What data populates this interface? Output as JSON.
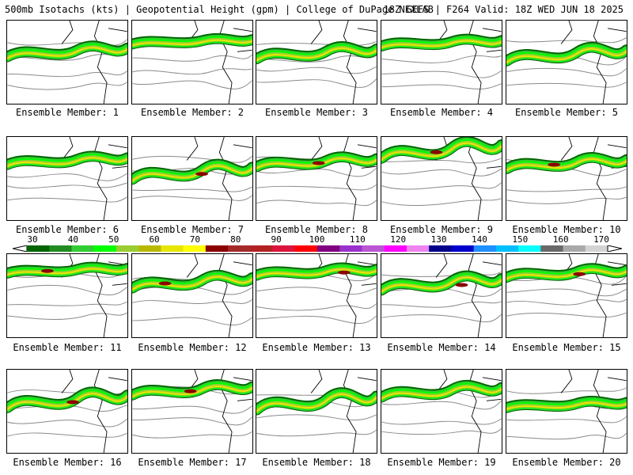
{
  "header": {
    "left": "500mb Isotachs (kts) | Geopotential Height (gpm) | College of DuPage NEXLAB",
    "right": "18Z GEFS | F264 Valid: 18Z WED JUN 18 2025"
  },
  "members": [
    "Ensemble Member: 1",
    "Ensemble Member: 2",
    "Ensemble Member: 3",
    "Ensemble Member: 4",
    "Ensemble Member: 5",
    "Ensemble Member: 6",
    "Ensemble Member: 7",
    "Ensemble Member: 8",
    "Ensemble Member: 9",
    "Ensemble Member: 10",
    "Ensemble Member: 11",
    "Ensemble Member: 12",
    "Ensemble Member: 13",
    "Ensemble Member: 14",
    "Ensemble Member: 15",
    "Ensemble Member: 16",
    "Ensemble Member: 17",
    "Ensemble Member: 18",
    "Ensemble Member: 19",
    "Ensemble Member: 20"
  ],
  "colorbar": {
    "ticks": [
      "30",
      "40",
      "50",
      "60",
      "70",
      "80",
      "90",
      "100",
      "110",
      "120",
      "130",
      "140",
      "150",
      "160",
      "170"
    ],
    "colors": [
      "#006400",
      "#228b22",
      "#32cd32",
      "#00ff00",
      "#9acd32",
      "#b8b800",
      "#e6e600",
      "#ffff00",
      "#8b0000",
      "#a52a2a",
      "#b22222",
      "#dc143c",
      "#ff0000",
      "#800080",
      "#9932cc",
      "#ba55d3",
      "#ff00ff",
      "#ee82ee",
      "#00008b",
      "#0000cd",
      "#1e90ff",
      "#00bfff",
      "#00ffff",
      "#696969",
      "#a9a9a9",
      "#d3d3d3"
    ]
  }
}
